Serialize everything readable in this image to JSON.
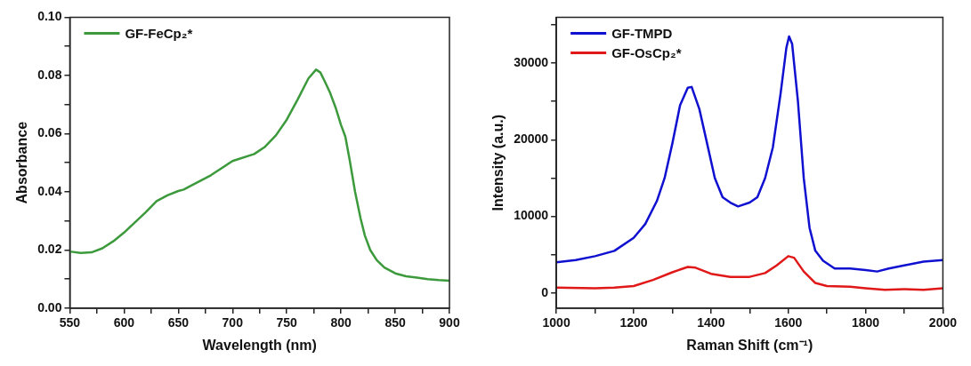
{
  "chart_data": [
    {
      "type": "line",
      "xlabel": "Wavelength (nm)",
      "ylabel": "Absorbance",
      "xlim": [
        550,
        900
      ],
      "ylim": [
        0,
        0.1
      ],
      "xticks": [
        550,
        {
          "value": 575,
          "label": null
        },
        600,
        {
          "value": 625,
          "label": null
        },
        650,
        {
          "value": 675,
          "label": null
        },
        700,
        {
          "value": 725,
          "label": null
        },
        750,
        {
          "value": 775,
          "label": null
        },
        800,
        {
          "value": 825,
          "label": null
        },
        850,
        {
          "value": 875,
          "label": null
        },
        900
      ],
      "yticks": [
        {
          "value": 0,
          "label": "0.00"
        },
        {
          "value": 0.01,
          "label": null
        },
        0.02,
        {
          "value": 0.03,
          "label": null
        },
        0.04,
        {
          "value": 0.05,
          "label": null
        },
        0.06,
        {
          "value": 0.07,
          "label": null
        },
        0.08,
        {
          "value": 0.09,
          "label": null
        },
        {
          "value": 0.1,
          "label": "0.10"
        }
      ],
      "grid": false,
      "legend": "top left",
      "marker": "none",
      "line_style": "solid",
      "series": [
        {
          "name": "GF-FeCp₂*",
          "color": "#3c9a3c",
          "x": [
            550,
            560,
            570,
            580,
            590,
            600,
            610,
            620,
            630,
            640,
            650,
            655,
            660,
            680,
            700,
            720,
            730,
            740,
            750,
            760,
            770,
            777,
            781,
            785,
            790,
            795,
            800,
            804,
            808,
            813,
            818,
            822,
            827,
            833,
            840,
            850,
            860,
            870,
            880,
            890,
            900
          ],
          "values": [
            0.0195,
            0.019,
            0.0192,
            0.0206,
            0.023,
            0.026,
            0.0295,
            0.033,
            0.0368,
            0.0388,
            0.0403,
            0.0408,
            0.0418,
            0.0457,
            0.0506,
            0.053,
            0.0555,
            0.0594,
            0.0648,
            0.0717,
            0.079,
            0.082,
            0.081,
            0.078,
            0.074,
            0.069,
            0.063,
            0.059,
            0.051,
            0.04,
            0.031,
            0.025,
            0.02,
            0.0165,
            0.014,
            0.012,
            0.011,
            0.0105,
            0.01,
            0.0097,
            0.0095
          ]
        }
      ]
    },
    {
      "type": "line",
      "xlabel": "Raman Shift (cm⁻¹)",
      "ylabel": "Intensity (a.u.)",
      "xlim": [
        1000,
        2000
      ],
      "ylim": [
        -2000,
        36000
      ],
      "xticks": [
        1000,
        {
          "value": 1100,
          "label": null
        },
        1200,
        {
          "value": 1300,
          "label": null
        },
        1400,
        {
          "value": 1500,
          "label": null
        },
        1600,
        {
          "value": 1700,
          "label": null
        },
        1800,
        {
          "value": 1900,
          "label": null
        },
        2000
      ],
      "yticks": [
        0,
        {
          "value": 5000,
          "label": null
        },
        10000,
        {
          "value": 15000,
          "label": null
        },
        20000,
        {
          "value": 25000,
          "label": null
        },
        30000,
        {
          "value": 35000,
          "label": null
        }
      ],
      "grid": false,
      "legend": "top left",
      "marker": "none",
      "line_style": "solid",
      "series": [
        {
          "name": "GF-TMPD",
          "color": "#1010d0",
          "x": [
            1000,
            1050,
            1100,
            1150,
            1200,
            1230,
            1260,
            1280,
            1300,
            1320,
            1340,
            1350,
            1370,
            1390,
            1410,
            1430,
            1450,
            1470,
            1500,
            1520,
            1540,
            1560,
            1580,
            1595,
            1602,
            1610,
            1625,
            1640,
            1655,
            1670,
            1690,
            1720,
            1760,
            1800,
            1830,
            1860,
            1900,
            1950,
            2000
          ],
          "values": [
            4000,
            4300,
            4800,
            5500,
            7200,
            9000,
            12000,
            15000,
            19500,
            24500,
            26800,
            26900,
            24000,
            19500,
            15000,
            12500,
            11800,
            11300,
            11800,
            12500,
            15000,
            19000,
            26000,
            32000,
            33500,
            32500,
            25000,
            15000,
            8500,
            5500,
            4200,
            3200,
            3200,
            3000,
            2800,
            3200,
            3600,
            4100,
            4300
          ]
        },
        {
          "name": "GF-OsCp₂*",
          "color": "#e01818",
          "x": [
            1000,
            1100,
            1150,
            1200,
            1250,
            1300,
            1340,
            1360,
            1400,
            1450,
            1500,
            1540,
            1570,
            1600,
            1615,
            1640,
            1670,
            1700,
            1760,
            1800,
            1850,
            1900,
            1950,
            2000
          ],
          "values": [
            700,
            600,
            700,
            900,
            1700,
            2700,
            3400,
            3300,
            2500,
            2100,
            2100,
            2600,
            3600,
            4800,
            4600,
            2800,
            1300,
            900,
            800,
            600,
            400,
            500,
            400,
            600
          ]
        }
      ]
    }
  ]
}
